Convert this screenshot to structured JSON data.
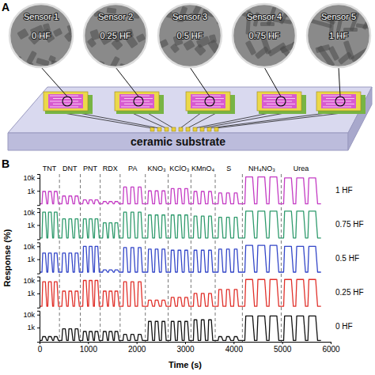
{
  "diagram": {
    "panel_label": "A",
    "substrate": "ceramic substrate",
    "sensors": [
      {
        "name": "Sensor 1",
        "sample": "0 HF"
      },
      {
        "name": "Sensor 2",
        "sample": "0.25 HF"
      },
      {
        "name": "Sensor 3",
        "sample": "0.5 HF"
      },
      {
        "name": "Sensor 4",
        "sample": "0.75 HF"
      },
      {
        "name": "Sensor 5",
        "sample": "1 HF"
      }
    ]
  },
  "chart_data": {
    "type": "line",
    "panel_label": "B",
    "xlabel": "Time (s)",
    "ylabel": "Response (%)",
    "log": "y",
    "xlim": [
      0,
      6000
    ],
    "xticks": [
      0,
      1000,
      2000,
      3000,
      4000,
      5000,
      6000
    ],
    "ylim": [
      80,
      20000
    ],
    "yticks": [
      {
        "value": 1000,
        "label": "1k"
      },
      {
        "value": 10000,
        "label": "10k"
      }
    ],
    "segments": [
      {
        "label": "TNT",
        "start": 0,
        "end": 410
      },
      {
        "label": "DNT",
        "start": 410,
        "end": 840
      },
      {
        "label": "PNT",
        "start": 840,
        "end": 1250
      },
      {
        "label": "RDX",
        "start": 1250,
        "end": 1660
      },
      {
        "label": "PA",
        "start": 1660,
        "end": 2180
      },
      {
        "label": "KNO₃",
        "start": 2180,
        "end": 2650
      },
      {
        "label": "KClO₃",
        "start": 2650,
        "end": 3120
      },
      {
        "label": "KMnO₄",
        "start": 3120,
        "end": 3620
      },
      {
        "label": "S",
        "start": 3620,
        "end": 4180
      },
      {
        "label": "NH₄NO₃",
        "start": 4180,
        "end": 4980
      },
      {
        "label": "Urea",
        "start": 4980,
        "end": 5800
      }
    ],
    "x": [
      0,
      50,
      65,
      120,
      150,
      170,
      185,
      240,
      270,
      290,
      305,
      360,
      390,
      460,
      475,
      530,
      560,
      590,
      605,
      660,
      690,
      720,
      735,
      790,
      820,
      890,
      905,
      960,
      990,
      1010,
      1025,
      1080,
      1110,
      1130,
      1145,
      1200,
      1230,
      1300,
      1315,
      1370,
      1400,
      1420,
      1435,
      1490,
      1520,
      1540,
      1555,
      1610,
      1640,
      1720,
      1735,
      1790,
      1820,
      1870,
      1885,
      1940,
      1970,
      2020,
      2035,
      2090,
      2120,
      2230,
      2245,
      2300,
      2330,
      2370,
      2385,
      2440,
      2470,
      2510,
      2525,
      2580,
      2610,
      2700,
      2715,
      2770,
      2800,
      2840,
      2855,
      2910,
      2940,
      2980,
      2995,
      3050,
      3080,
      3170,
      3185,
      3240,
      3270,
      3320,
      3335,
      3390,
      3420,
      3470,
      3485,
      3540,
      3570,
      3680,
      3695,
      3750,
      3780,
      3840,
      3855,
      3910,
      3940,
      4000,
      4015,
      4070,
      4100,
      4230,
      4250,
      4390,
      4430,
      4480,
      4500,
      4640,
      4680,
      4730,
      4750,
      4890,
      4930,
      5030,
      5050,
      5190,
      5230,
      5280,
      5300,
      5440,
      5480,
      5530,
      5550,
      5690,
      5730,
      5800
    ],
    "series": [
      {
        "name": "1 HF",
        "color": "#c43cc4",
        "values": [
          100,
          100,
          900,
          900,
          100,
          100,
          900,
          900,
          100,
          100,
          900,
          900,
          100,
          100,
          400,
          400,
          100,
          100,
          400,
          400,
          100,
          100,
          400,
          400,
          100,
          100,
          200,
          200,
          100,
          100,
          200,
          200,
          100,
          100,
          200,
          200,
          100,
          100,
          150,
          150,
          100,
          100,
          150,
          150,
          100,
          100,
          150,
          150,
          100,
          100,
          2000,
          2000,
          100,
          100,
          2000,
          2000,
          100,
          100,
          2000,
          2000,
          100,
          100,
          1000,
          1000,
          100,
          100,
          1000,
          1000,
          100,
          100,
          1000,
          1000,
          100,
          100,
          1500,
          1500,
          100,
          100,
          1500,
          1500,
          100,
          100,
          1500,
          1500,
          100,
          100,
          900,
          900,
          100,
          100,
          900,
          900,
          100,
          100,
          900,
          900,
          100,
          100,
          700,
          700,
          100,
          100,
          700,
          700,
          100,
          100,
          700,
          700,
          100,
          100,
          12000,
          12000,
          100,
          100,
          12000,
          12000,
          100,
          100,
          12000,
          12000,
          100,
          100,
          10000,
          10000,
          100,
          100,
          10000,
          10000,
          100,
          100,
          10000,
          10000,
          100,
          100
        ]
      },
      {
        "name": "0.75 HF",
        "color": "#2e9a6c",
        "values": [
          100,
          100,
          10000,
          10000,
          100,
          100,
          10000,
          10000,
          100,
          100,
          10000,
          10000,
          100,
          100,
          3000,
          3000,
          100,
          100,
          3000,
          3000,
          100,
          100,
          3000,
          3000,
          100,
          100,
          3000,
          3000,
          100,
          100,
          3000,
          3000,
          100,
          100,
          3000,
          3000,
          100,
          100,
          1500,
          1500,
          100,
          100,
          1500,
          1500,
          100,
          100,
          1500,
          1500,
          100,
          100,
          10000,
          10000,
          100,
          100,
          10000,
          10000,
          100,
          100,
          10000,
          10000,
          100,
          100,
          6000,
          6000,
          100,
          100,
          6000,
          6000,
          100,
          100,
          6000,
          6000,
          100,
          100,
          6000,
          6000,
          100,
          100,
          6000,
          6000,
          100,
          100,
          6000,
          6000,
          100,
          100,
          5000,
          5000,
          100,
          100,
          5000,
          5000,
          100,
          100,
          5000,
          5000,
          100,
          100,
          4000,
          4000,
          100,
          100,
          4000,
          4000,
          100,
          100,
          4000,
          4000,
          100,
          100,
          12000,
          12000,
          100,
          100,
          12000,
          12000,
          100,
          100,
          12000,
          12000,
          100,
          100,
          12000,
          12000,
          100,
          100,
          12000,
          12000,
          100,
          100,
          12000,
          12000,
          100,
          100
        ]
      },
      {
        "name": "0.5 HF",
        "color": "#3346c8",
        "values": [
          100,
          100,
          3000,
          3000,
          100,
          100,
          3000,
          3000,
          100,
          100,
          3000,
          3000,
          100,
          100,
          3000,
          3000,
          100,
          100,
          3000,
          3000,
          100,
          100,
          3000,
          3000,
          100,
          100,
          10000,
          10000,
          100,
          100,
          10000,
          10000,
          100,
          100,
          10000,
          10000,
          100,
          100,
          150,
          150,
          100,
          100,
          150,
          150,
          100,
          100,
          150,
          150,
          100,
          100,
          8000,
          8000,
          100,
          100,
          8000,
          8000,
          100,
          100,
          8000,
          8000,
          100,
          100,
          6000,
          6000,
          100,
          100,
          6000,
          6000,
          100,
          100,
          6000,
          6000,
          100,
          100,
          5000,
          5000,
          100,
          100,
          5000,
          5000,
          100,
          100,
          5000,
          5000,
          100,
          100,
          5000,
          5000,
          100,
          100,
          5000,
          5000,
          100,
          100,
          5000,
          5000,
          100,
          100,
          6000,
          6000,
          100,
          100,
          6000,
          6000,
          100,
          100,
          6000,
          6000,
          100,
          100,
          12000,
          12000,
          100,
          100,
          12000,
          12000,
          100,
          100,
          12000,
          12000,
          100,
          100,
          10000,
          10000,
          100,
          100,
          10000,
          10000,
          100,
          100,
          10000,
          10000,
          100,
          100
        ]
      },
      {
        "name": "0.25 HF",
        "color": "#e0302a",
        "values": [
          100,
          100,
          8000,
          8000,
          100,
          100,
          8000,
          8000,
          100,
          100,
          8000,
          8000,
          100,
          100,
          1500,
          1500,
          100,
          100,
          1500,
          1500,
          100,
          100,
          1500,
          1500,
          100,
          100,
          10000,
          10000,
          100,
          100,
          10000,
          10000,
          100,
          100,
          10000,
          10000,
          100,
          100,
          1500,
          1500,
          100,
          100,
          1500,
          1500,
          100,
          100,
          1500,
          1500,
          100,
          100,
          8000,
          8000,
          100,
          100,
          8000,
          8000,
          100,
          100,
          8000,
          8000,
          100,
          100,
          300,
          300,
          100,
          100,
          300,
          300,
          100,
          100,
          300,
          300,
          100,
          100,
          500,
          500,
          100,
          100,
          500,
          500,
          100,
          100,
          500,
          500,
          100,
          100,
          1000,
          1000,
          100,
          100,
          1000,
          1000,
          100,
          100,
          1000,
          1000,
          100,
          100,
          2000,
          2000,
          100,
          100,
          2000,
          2000,
          100,
          100,
          2000,
          2000,
          100,
          100,
          12000,
          12000,
          100,
          100,
          12000,
          12000,
          100,
          100,
          12000,
          12000,
          100,
          100,
          12000,
          12000,
          100,
          100,
          12000,
          12000,
          100,
          100,
          12000,
          12000,
          100,
          100
        ]
      },
      {
        "name": "0 HF",
        "color": "#111111",
        "values": [
          100,
          100,
          200,
          200,
          100,
          100,
          200,
          200,
          100,
          100,
          200,
          200,
          100,
          100,
          800,
          800,
          100,
          100,
          800,
          800,
          100,
          100,
          800,
          800,
          100,
          100,
          500,
          500,
          100,
          100,
          500,
          500,
          100,
          100,
          500,
          500,
          100,
          100,
          500,
          500,
          100,
          100,
          500,
          500,
          100,
          100,
          500,
          500,
          100,
          100,
          300,
          300,
          100,
          100,
          300,
          300,
          100,
          100,
          300,
          300,
          100,
          100,
          3000,
          3000,
          100,
          100,
          3000,
          3000,
          100,
          100,
          3000,
          3000,
          100,
          100,
          3000,
          3000,
          100,
          100,
          3000,
          3000,
          100,
          100,
          3000,
          3000,
          100,
          100,
          4000,
          4000,
          100,
          100,
          4000,
          4000,
          100,
          100,
          4000,
          4000,
          100,
          100,
          200,
          200,
          100,
          100,
          200,
          200,
          100,
          100,
          200,
          200,
          100,
          100,
          8000,
          8000,
          100,
          100,
          8000,
          8000,
          100,
          100,
          8000,
          8000,
          100,
          100,
          8000,
          8000,
          100,
          100,
          8000,
          8000,
          100,
          100,
          8000,
          8000,
          100,
          100
        ]
      }
    ]
  }
}
